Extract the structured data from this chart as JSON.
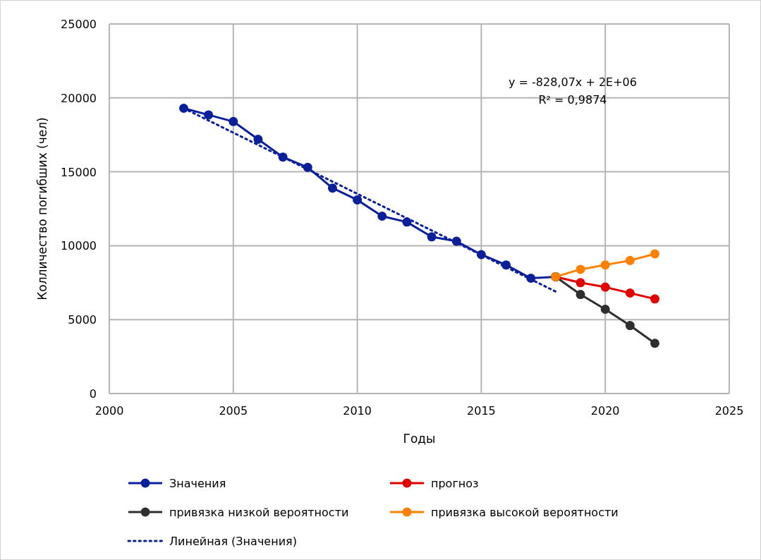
{
  "chart_data": {
    "type": "line",
    "xlabel": "Годы",
    "ylabel": "Колличество погибших (чел)",
    "xlim": [
      2000,
      2025
    ],
    "xticks": [
      2000,
      2005,
      2010,
      2015,
      2020,
      2025
    ],
    "ylim": [
      0,
      25000
    ],
    "yticks": [
      0,
      5000,
      10000,
      15000,
      20000,
      25000
    ],
    "grid": true,
    "legend": "bottom",
    "annotations": [
      "y = -828,07x + 2E+06",
      "R² = 0,9874"
    ],
    "series": [
      {
        "name": "Значения",
        "color": "#0a209a",
        "marker": "circle",
        "line_style": "solid",
        "x": [
          2003,
          2004,
          2005,
          2006,
          2007,
          2008,
          2009,
          2010,
          2011,
          2012,
          2013,
          2014,
          2015,
          2016,
          2017,
          2018
        ],
        "values": [
          19300,
          18850,
          18400,
          17200,
          16000,
          15300,
          13900,
          13100,
          12000,
          11600,
          10600,
          10300,
          9400,
          8700,
          7800,
          7900
        ]
      },
      {
        "name": "прогноз",
        "color": "#e00000",
        "marker": "circle",
        "line_style": "solid",
        "x": [
          2018,
          2019,
          2020,
          2021,
          2022
        ],
        "values": [
          7900,
          7500,
          7200,
          6800,
          6400
        ]
      },
      {
        "name": "привязка низкой вероятности",
        "color": "#2e2e2e",
        "marker": "circle",
        "line_style": "solid",
        "x": [
          2018,
          2019,
          2020,
          2021,
          2022
        ],
        "values": [
          7900,
          6700,
          5700,
          4600,
          3400
        ]
      },
      {
        "name": "привязка высокой вероятности",
        "color": "#ff8000",
        "marker": "circle",
        "line_style": "solid",
        "x": [
          2018,
          2019,
          2020,
          2021,
          2022
        ],
        "values": [
          7900,
          8400,
          8700,
          9000,
          9450
        ]
      },
      {
        "name": "Линейная (Значения)",
        "color": "#0a209a",
        "marker": "none",
        "line_style": "dotted",
        "x": [
          2003,
          2018
        ],
        "values": [
          19300,
          6900
        ]
      }
    ]
  }
}
